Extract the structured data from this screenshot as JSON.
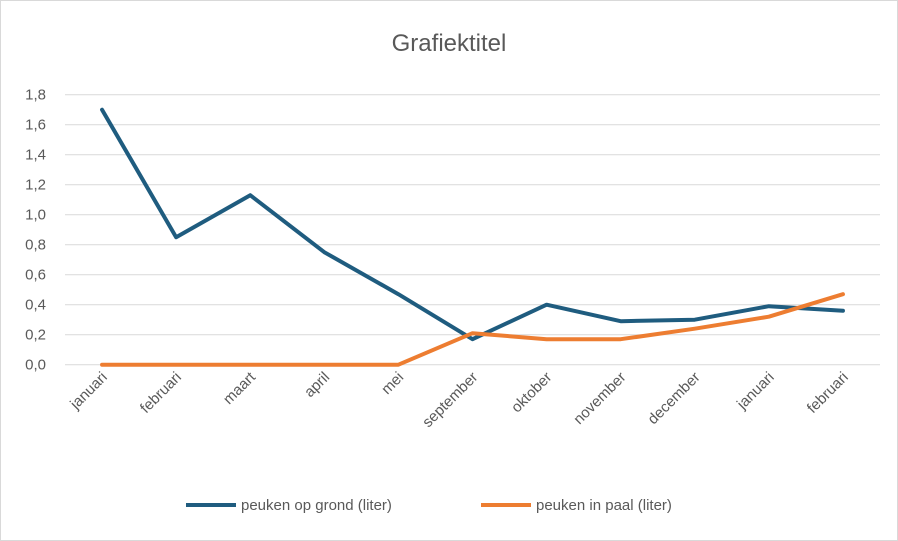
{
  "chart_data": {
    "type": "line",
    "title": "Grafiektitel",
    "xlabel": "",
    "ylabel": "",
    "categories": [
      "januari",
      "februari",
      "maart",
      "april",
      "mei",
      "september",
      "oktober",
      "november",
      "december",
      "januari",
      "februari"
    ],
    "series": [
      {
        "name": "peuken op grond (liter)",
        "color": "#1f5c7f",
        "values": [
          1.7,
          0.85,
          1.13,
          0.75,
          0.47,
          0.17,
          0.4,
          0.29,
          0.3,
          0.39,
          0.36
        ]
      },
      {
        "name": "peuken in paal (liter)",
        "color": "#ed7d31",
        "values": [
          0,
          0,
          0,
          0,
          0,
          0.21,
          0.17,
          0.17,
          0.24,
          0.32,
          0.47
        ]
      }
    ],
    "ylim": [
      0,
      1.8
    ],
    "yticks": [
      "0,0",
      "0,2",
      "0,4",
      "0,6",
      "0,8",
      "1,0",
      "1,2",
      "1,4",
      "1,6",
      "1,8"
    ],
    "grid": true,
    "legend": "bottom"
  }
}
